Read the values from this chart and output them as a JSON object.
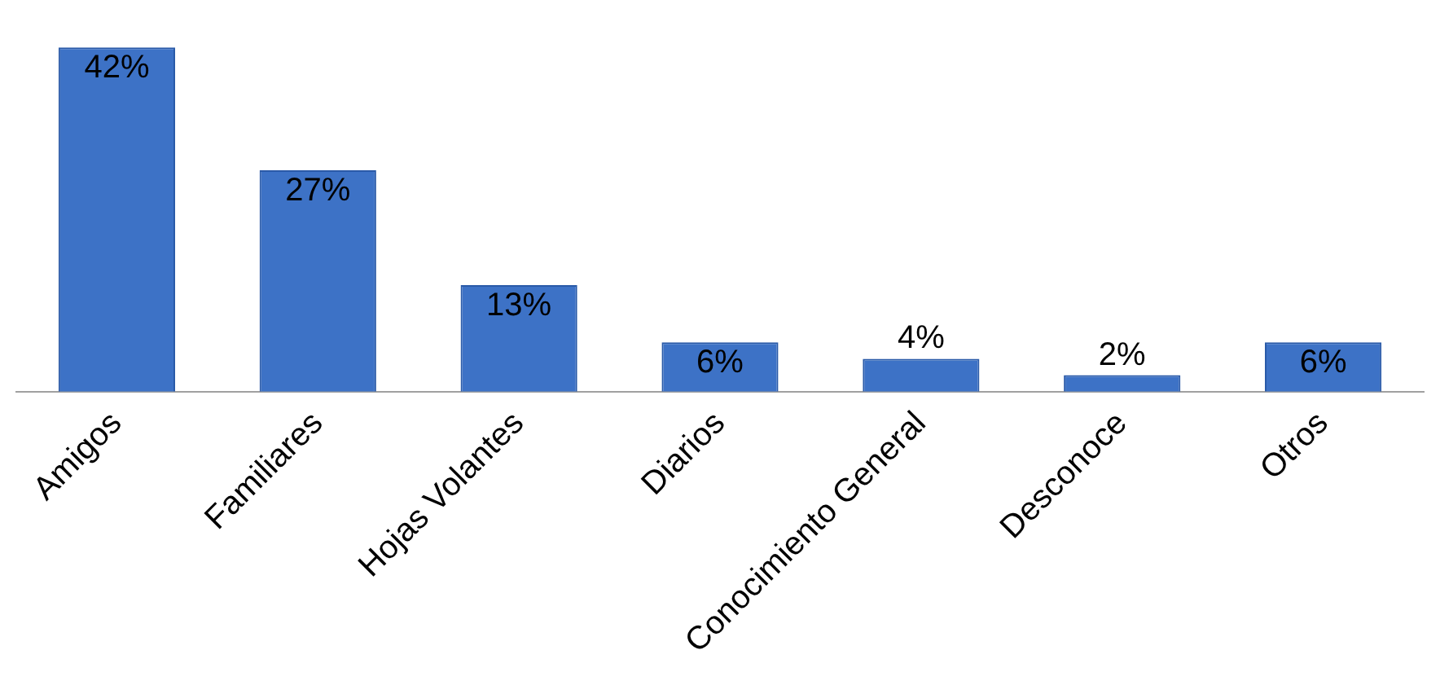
{
  "chart_data": {
    "type": "bar",
    "categories": [
      "Amigos",
      "Familiares",
      "Hojas Volantes",
      "Diarios",
      "Conocimiento General",
      "Desconoce",
      "Otros"
    ],
    "values": [
      42,
      27,
      13,
      6,
      4,
      2,
      6
    ],
    "value_labels": [
      "42%",
      "27%",
      "13%",
      "6%",
      "4%",
      "2%",
      "6%"
    ],
    "color": "#3d72c6",
    "grid": false,
    "legend": false
  }
}
